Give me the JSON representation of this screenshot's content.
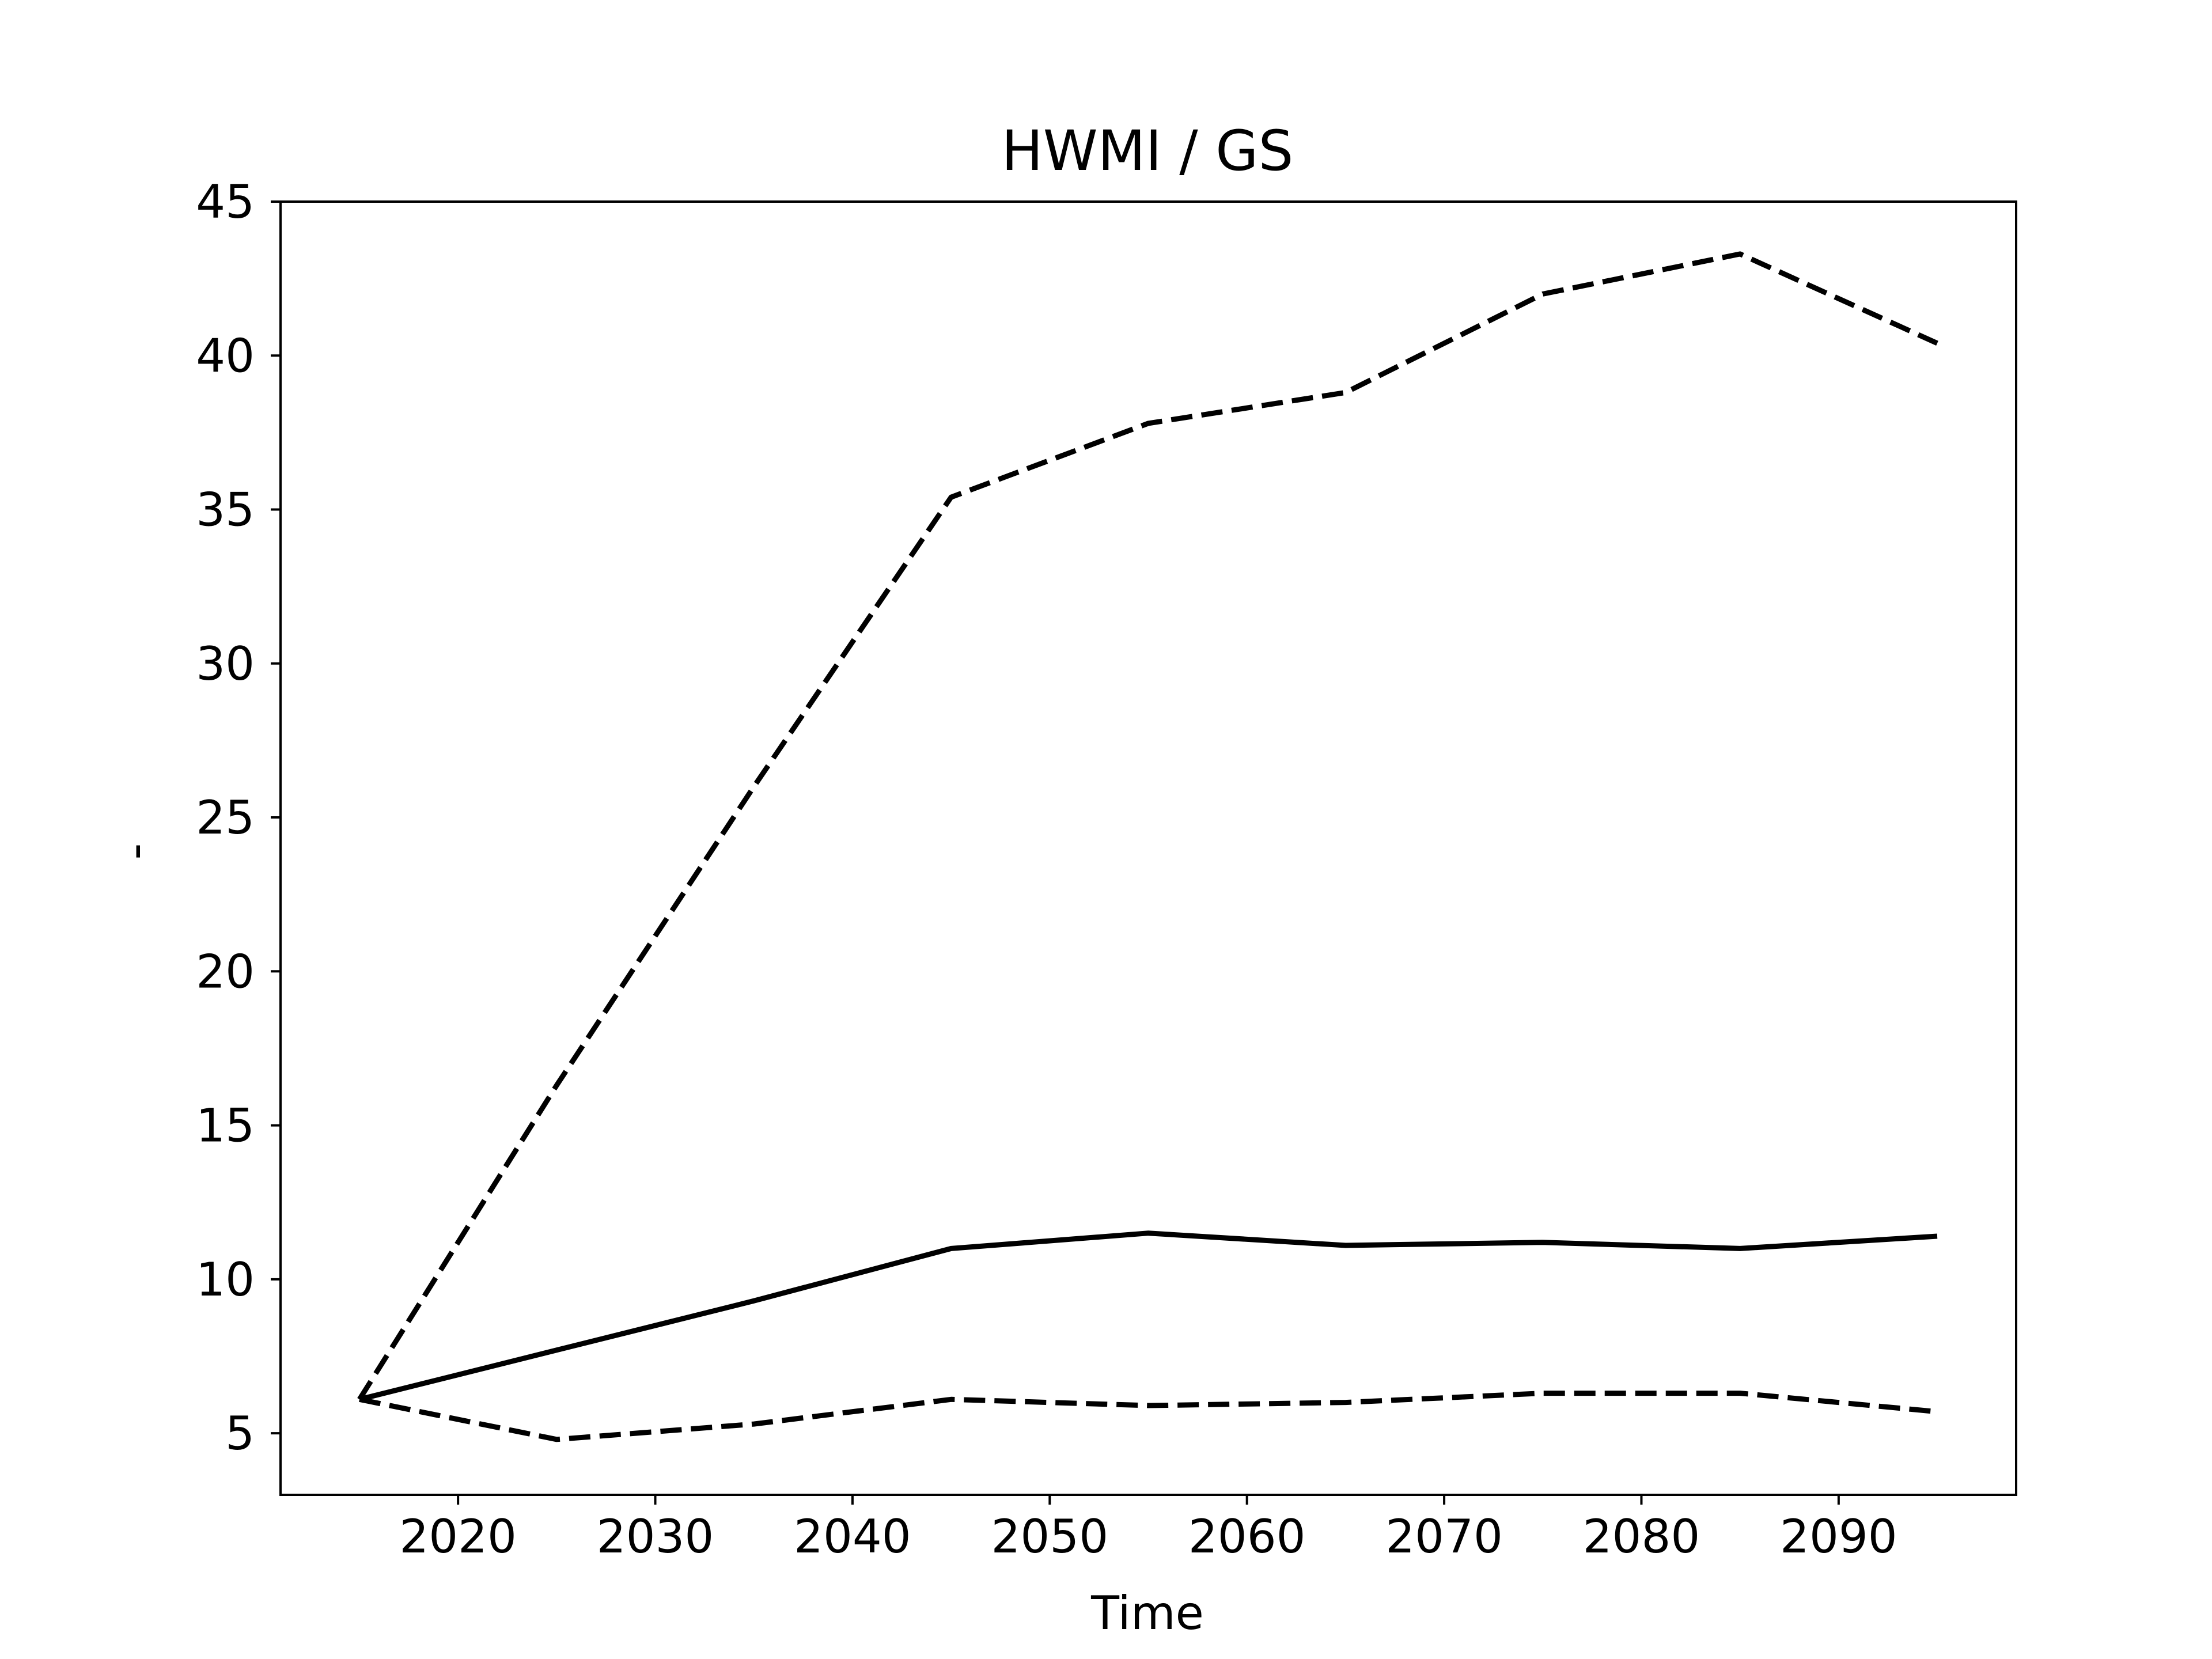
{
  "chart_data": {
    "type": "line",
    "title": "HWMI / GS",
    "xlabel": "Time",
    "ylabel": "-",
    "xlim": [
      2011,
      2099
    ],
    "ylim": [
      3,
      45
    ],
    "xticks": [
      2020,
      2030,
      2040,
      2050,
      2060,
      2070,
      2080,
      2090
    ],
    "yticks": [
      5,
      10,
      15,
      20,
      25,
      30,
      35,
      40,
      45
    ],
    "grid": false,
    "legend": "none",
    "x": [
      2015,
      2025,
      2035,
      2045,
      2055,
      2065,
      2075,
      2085,
      2095
    ],
    "series": [
      {
        "style": "solid",
        "color": "#000000",
        "values": [
          6.1,
          7.7,
          9.3,
          11.0,
          11.5,
          11.1,
          11.2,
          11.0,
          11.4
        ]
      },
      {
        "style": "dashed",
        "color": "#000000",
        "values": [
          6.1,
          16.3,
          26.0,
          35.4,
          37.8,
          38.8,
          42.0,
          43.3,
          40.4
        ]
      },
      {
        "style": "dashed",
        "color": "#000000",
        "values": [
          6.1,
          4.8,
          5.3,
          6.1,
          5.9,
          6.0,
          6.3,
          6.3,
          5.7
        ]
      }
    ]
  }
}
